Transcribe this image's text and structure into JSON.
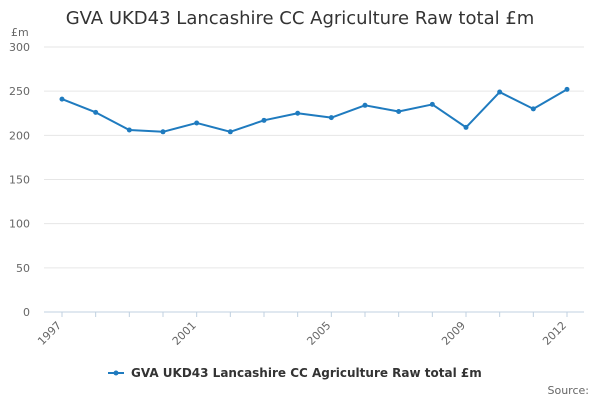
{
  "chart_data": {
    "type": "line",
    "title": "GVA UKD43 Lancashire CC Agriculture Raw total £m",
    "ylabel": "£m",
    "xlabel": "",
    "ylim": [
      0,
      300
    ],
    "yticks": [
      "0",
      "50",
      "100",
      "150",
      "200",
      "250",
      "300"
    ],
    "xlim": [
      1997,
      2012
    ],
    "xticks": [
      "1997",
      "2001",
      "2005",
      "2009",
      "2012"
    ],
    "grid": true,
    "legend_position": "bottom",
    "series": [
      {
        "name": "GVA UKD43 Lancashire CC Agriculture Raw total £m",
        "color": "#1f7bbf",
        "x": [
          1997,
          1998,
          1999,
          2000,
          2001,
          2002,
          2003,
          2004,
          2005,
          2006,
          2007,
          2008,
          2009,
          2010,
          2011,
          2012
        ],
        "values": [
          241,
          226,
          206,
          204,
          214,
          204,
          217,
          225,
          220,
          234,
          227,
          235,
          209,
          249,
          230,
          252
        ]
      }
    ]
  },
  "footer": {
    "source_label": "Source:"
  }
}
